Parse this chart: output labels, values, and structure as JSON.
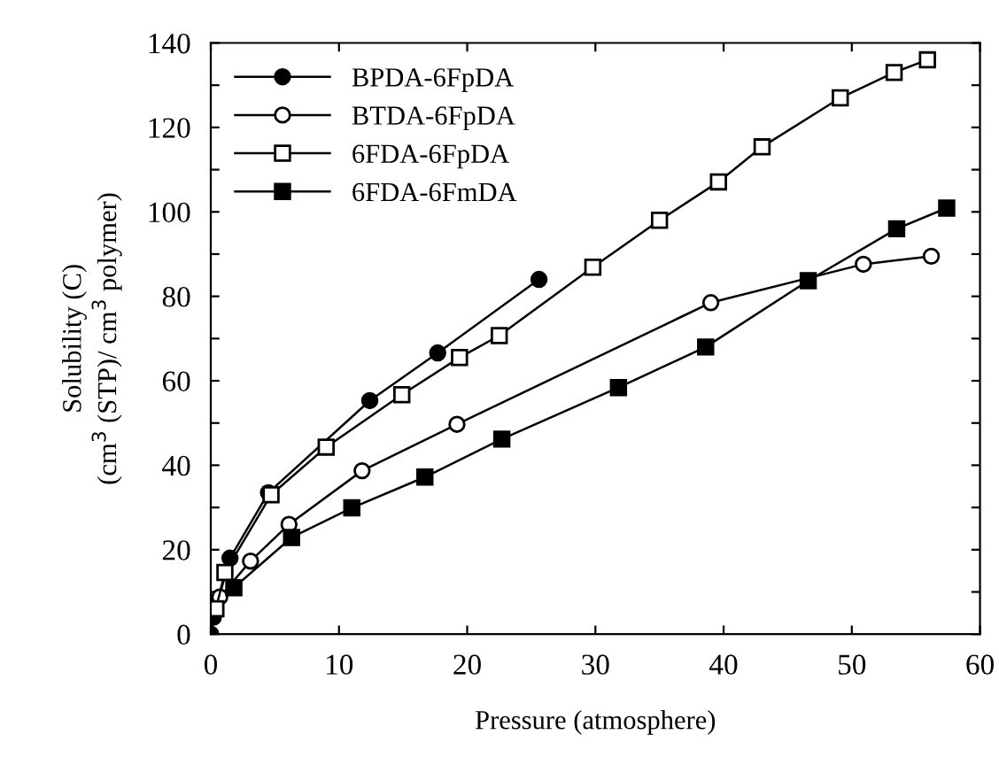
{
  "chart_data": {
    "type": "line",
    "xlabel": "Pressure (atmosphere)",
    "ylabel": "Solubility (C)\n(cm$^{3}$ (STP)/ cm$^{3}$ polymer)",
    "series": [
      {
        "name": "BPDA-6FpDA",
        "color": "#000000",
        "marker": "circle",
        "x": [
          0,
          0.2,
          1.5,
          4.5,
          12.4,
          17.7,
          25.6
        ],
        "values": [
          0,
          4,
          18,
          33.5,
          55.3,
          66.6,
          84
        ]
      },
      {
        "name": "BTDA-6FpDA",
        "color": "#000000",
        "marker": "circle",
        "x": [
          0.7,
          3.1,
          6.1,
          11.8,
          19.2,
          39,
          50.9,
          56.2
        ],
        "values": [
          8.8,
          17.3,
          26,
          38.7,
          49.7,
          78.5,
          87.6,
          89.5
        ]
      },
      {
        "name": "6FDA-6FpDA",
        "color": "#000000",
        "marker": "square",
        "x": [
          0.4,
          1.1,
          4.7,
          9.0,
          14.9,
          19.4,
          22.5,
          29.8,
          35.0,
          39.6,
          43.0,
          49.1,
          53.3,
          55.9
        ],
        "values": [
          6,
          14.6,
          33,
          44.3,
          56.7,
          65.5,
          70.7,
          86.9,
          98,
          107.1,
          115.4,
          127,
          133,
          136
        ]
      },
      {
        "name": "6FDA-6FmDA",
        "color": "#000000",
        "marker": "square",
        "x": [
          1.8,
          6.3,
          11,
          16.7,
          22.7,
          31.8,
          38.6,
          46.6,
          53.5,
          57.4
        ],
        "values": [
          11,
          22.9,
          29.9,
          37.2,
          46.2,
          58.4,
          68,
          83.7,
          96,
          100.9
        ]
      }
    ],
    "xlim": [
      0,
      60
    ],
    "xticks": [
      0,
      10,
      20,
      30,
      40,
      50,
      60
    ],
    "ylim": [
      0,
      140
    ],
    "yticks": [
      0,
      {
        "value": 10,
        "label": null
      },
      20,
      {
        "value": 30,
        "label": null
      },
      40,
      {
        "value": 50,
        "label": null
      },
      60,
      {
        "value": 70,
        "label": null
      },
      80,
      {
        "value": 90,
        "label": null
      },
      100,
      {
        "value": 110,
        "label": null
      },
      120,
      {
        "value": 130,
        "label": null
      },
      140
    ],
    "grid": false,
    "legend": "top left",
    "line_style": "solid"
  }
}
